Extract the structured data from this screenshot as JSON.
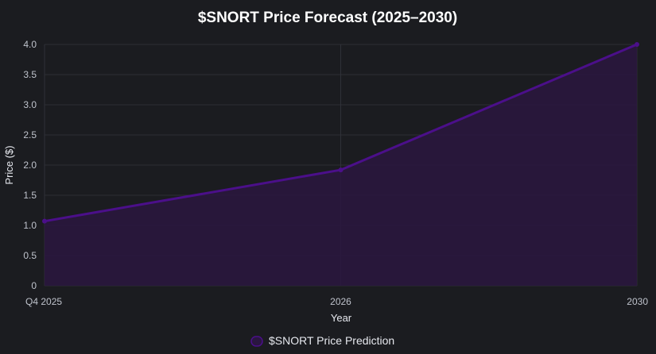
{
  "chart_data": {
    "type": "area",
    "title": "$SNORT Price Forecast (2025–2030)",
    "xlabel": "Year",
    "ylabel": "Price ($)",
    "categories": [
      "Q4 2025",
      "2026",
      "2030"
    ],
    "ylim": [
      0,
      4.0
    ],
    "yticks": [
      "0",
      "0.5",
      "1.0",
      "1.5",
      "2.0",
      "2.5",
      "3.0",
      "3.5",
      "4.0"
    ],
    "series": [
      {
        "name": "$SNORT Price Prediction",
        "values": [
          1.07,
          1.92,
          4.0
        ],
        "color": "#4b0f8a",
        "fill": "#2a1640"
      }
    ],
    "grid": true,
    "legend_position": "bottom"
  },
  "colors": {
    "background": "#1b1c20",
    "line": "#4b0f8a",
    "area": "#2a1640"
  }
}
